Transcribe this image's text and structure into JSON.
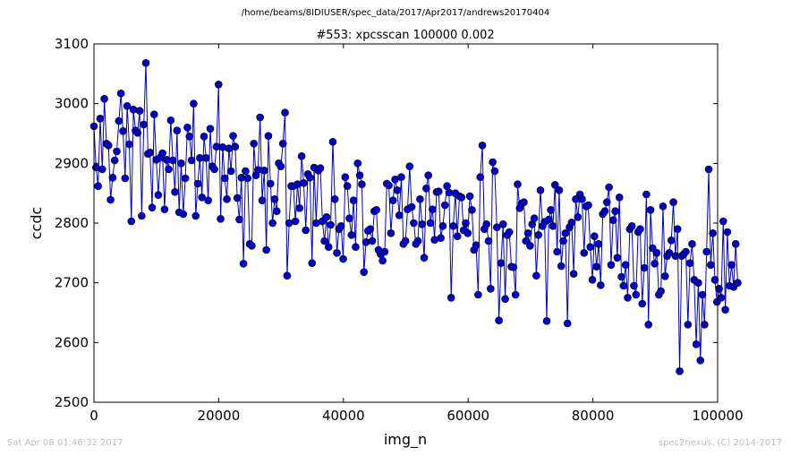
{
  "header": {
    "path": "/home/beams/8IDIUSER/spec_data/2017/Apr2017/andrews20170404"
  },
  "footer": {
    "timestamp": "Sat Apr 08 01:46:32 2017",
    "credit": "spec2nexus, (C) 2014-2017"
  },
  "chart_data": {
    "type": "line",
    "title": "#553: xpcsscan 100000 0.002",
    "xlabel": "img_n",
    "ylabel": "ccdc",
    "xlim": [
      0,
      100000
    ],
    "ylim": [
      2500,
      3100
    ],
    "xticks": [
      "0",
      "20000",
      "40000",
      "60000",
      "80000",
      "100000"
    ],
    "yticks": [
      "2500",
      "2600",
      "2700",
      "2800",
      "2900",
      "3000",
      "3100"
    ],
    "grid": false,
    "legend": "none",
    "marker": "circle",
    "color": "#0000cc",
    "series": [
      {
        "x_start": 0,
        "x_step": 333,
        "values": [
          2962,
          2893,
          2862,
          2975,
          2890,
          3008,
          2933,
          2930,
          2839,
          2876,
          2905,
          2920,
          2971,
          3017,
          2954,
          2875,
          2996,
          2932,
          2803,
          2990,
          2955,
          2951,
          2988,
          2812,
          2965,
          3068,
          2916,
          2918,
          2826,
          2982,
          2906,
          2847,
          2910,
          2917,
          2823,
          2906,
          2890,
          2972,
          2905,
          2852,
          2955,
          2818,
          2900,
          2815,
          2875,
          2960,
          2945,
          2905,
          3000,
          2812,
          2866,
          2909,
          2843,
          2945,
          2909,
          2838,
          2958,
          2895,
          2890,
          2928,
          3032,
          2807,
          2927,
          2875,
          2840,
          2925,
          2887,
          2946,
          2928,
          2842,
          2806,
          2876,
          2732,
          2887,
          2875,
          2765,
          2762,
          2933,
          2880,
          2889,
          2977,
          2838,
          2888,
          2755,
          2946,
          2866,
          2800,
          2840,
          2820,
          2900,
          2895,
          2933,
          2985,
          2712,
          2800,
          2862,
          2862,
          2803,
          2865,
          2825,
          2912,
          2867,
          2788,
          2882,
          2876,
          2733,
          2893,
          2800,
          2888,
          2892,
          2803,
          2770,
          2810,
          2760,
          2797,
          2936,
          2840,
          2750,
          2790,
          2795,
          2740,
          2877,
          2862,
          2808,
          2780,
          2838,
          2760,
          2900,
          2880,
          2865,
          2718,
          2768,
          2787,
          2790,
          2770,
          2820,
          2822,
          2755,
          2748,
          2737,
          2752,
          2866,
          2863,
          2783,
          2838,
          2873,
          2855,
          2813,
          2877,
          2765,
          2770,
          2823,
          2895,
          2827,
          2800,
          2765,
          2770,
          2840,
          2798,
          2742,
          2858,
          2880,
          2800,
          2823,
          2772,
          2852,
          2853,
          2775,
          2795,
          2830,
          2862,
          2851,
          2675,
          2795,
          2850,
          2778,
          2845,
          2843,
          2788,
          2800,
          2783,
          2845,
          2822,
          2755,
          2763,
          2680,
          2877,
          2930,
          2790,
          2798,
          2770,
          2690,
          2902,
          2887,
          2793,
          2637,
          2733,
          2798,
          2673,
          2780,
          2785,
          2727,
          2726,
          2680,
          2865,
          2825,
          2833,
          2835,
          2770,
          2783,
          2762,
          2798,
          2808,
          2712,
          2780,
          2855,
          2795,
          2802,
          2636,
          2806,
          2822,
          2795,
          2864,
          2752,
          2855,
          2728,
          2770,
          2783,
          2632,
          2793,
          2801,
          2715,
          2840,
          2810,
          2848,
          2840,
          2750,
          2828,
          2830,
          2760,
          2705,
          2778,
          2727,
          2765,
          2696,
          2815,
          2820,
          2835,
          2860,
          2730,
          2805,
          2820,
          2742,
          2843,
          2710,
          2695,
          2730,
          2675,
          2790,
          2795,
          2695,
          2680,
          2785,
          2790,
          2665,
          2725,
          2848,
          2630,
          2822,
          2758,
          2732,
          2750,
          2680,
          2686,
          2828,
          2711,
          2745,
          2750,
          2771,
          2835,
          2745,
          2790,
          2552,
          2745,
          2748,
          2752,
          2630,
          2733,
          2765,
          2705,
          2597,
          2700,
          2570,
          2680,
          2630,
          2752,
          2890,
          2730,
          2783,
          2705,
          2668,
          2690,
          2675,
          2803,
          2655,
          2785,
          2695,
          2730,
          2693,
          2765,
          2700
        ]
      }
    ]
  }
}
